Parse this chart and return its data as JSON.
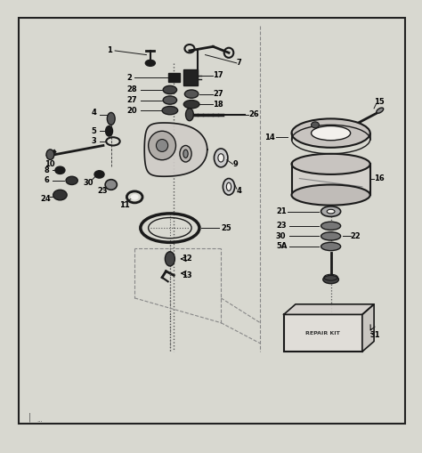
{
  "bg_color": "#ffffff",
  "outer_bg": "#d8d8d0",
  "inner_bg": "#f2f0ec",
  "diagram_border": "#222222",
  "part_color": "#1a1a1a",
  "line_color": "#1a1a1a",
  "dashed_color": "#333333",
  "label_fontsize": 6.0,
  "label_color": "#000000",
  "fig_width": 4.74,
  "fig_height": 5.09,
  "dpi": 100
}
